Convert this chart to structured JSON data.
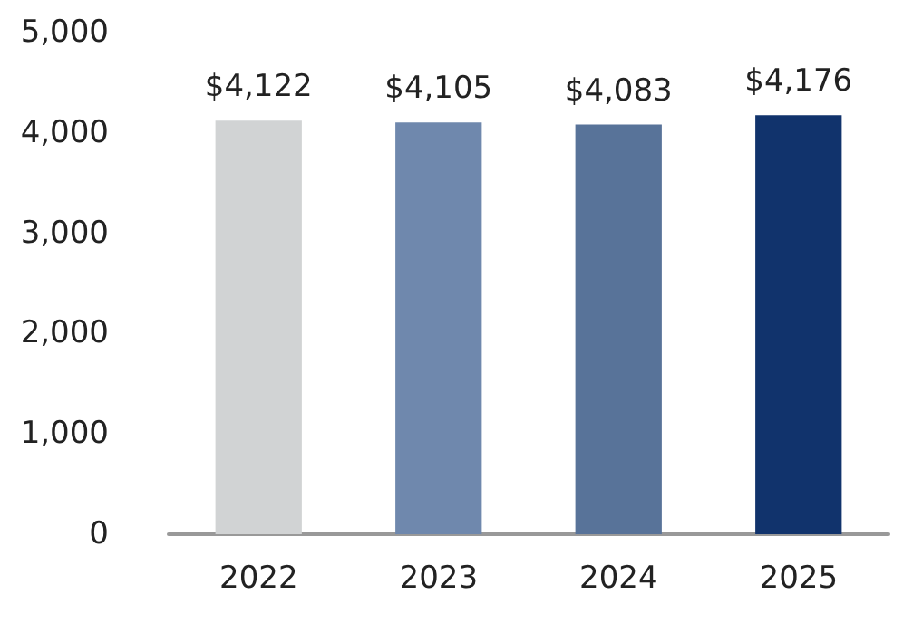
{
  "chart_data": {
    "type": "bar",
    "categories": [
      "2022",
      "2023",
      "2024",
      "2025"
    ],
    "values": [
      4122,
      4105,
      4083,
      4176
    ],
    "colors": [
      "#d1d3d4",
      "#6f88ad",
      "#587399",
      "#11336c"
    ],
    "value_labels": [
      "$4,122",
      "$4,105",
      "$4,083",
      "$4,176"
    ],
    "ylim": [
      0,
      5000
    ],
    "yticks": [
      0,
      {
        "value": 1000,
        "label": "1,000"
      },
      {
        "value": 2000,
        "label": "2,000"
      },
      {
        "value": 3000,
        "label": "3,000"
      },
      {
        "value": 4000,
        "label": "4,000"
      },
      {
        "value": 5000,
        "label": "5,000"
      }
    ],
    "grid": false
  }
}
